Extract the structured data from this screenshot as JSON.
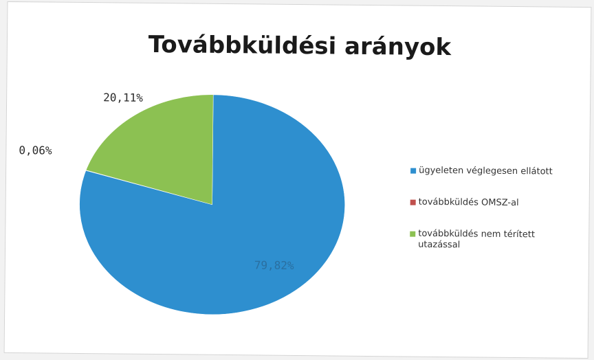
{
  "chart_data": {
    "type": "pie",
    "title": "Továbbküldési arányok",
    "categories": [
      "ügyeleten véglegesen ellátott",
      "továbbküldés OMSZ-al",
      "továbbküldés nem térített utazással"
    ],
    "values": [
      79.82,
      0.06,
      20.11
    ],
    "data_labels": [
      "79,82%",
      "0,06%",
      "20,11%"
    ],
    "colors": [
      "#2e8fcf",
      "#c0504d",
      "#8cc152"
    ],
    "legend_position": "right"
  }
}
